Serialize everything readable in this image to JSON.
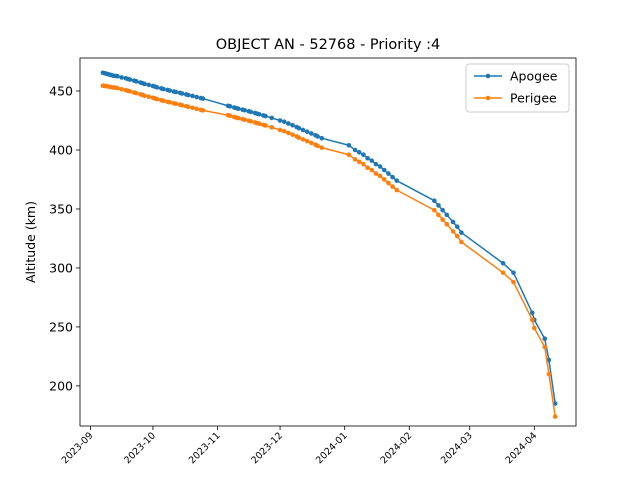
{
  "chart_data": {
    "type": "line",
    "title": "OBJECT AN - 52768 - Priority :4",
    "xlabel": "",
    "ylabel": "Altitude (km)",
    "x_ticks": [
      "2023-09",
      "2023-10",
      "2023-11",
      "2023-12",
      "2024-01",
      "2024-02",
      "2024-03",
      "2024-04"
    ],
    "y_ticks": [
      200,
      250,
      300,
      350,
      400,
      450
    ],
    "xlim": [
      "2023-08-27",
      "2024-04-21"
    ],
    "ylim": [
      166,
      478
    ],
    "grid": false,
    "legend": "top-right",
    "x": [
      "2023-09-07",
      "2023-09-08",
      "2023-09-09",
      "2023-09-10",
      "2023-09-11",
      "2023-09-12",
      "2023-09-13",
      "2023-09-14",
      "2023-09-16",
      "2023-09-18",
      "2023-09-19",
      "2023-09-20",
      "2023-09-22",
      "2023-09-23",
      "2023-09-25",
      "2023-09-26",
      "2023-09-27",
      "2023-09-29",
      "2023-10-01",
      "2023-10-02",
      "2023-10-03",
      "2023-10-05",
      "2023-10-06",
      "2023-10-08",
      "2023-10-09",
      "2023-10-11",
      "2023-10-12",
      "2023-10-14",
      "2023-10-15",
      "2023-10-17",
      "2023-10-18",
      "2023-10-20",
      "2023-10-22",
      "2023-10-24",
      "2023-10-25",
      "2023-11-06",
      "2023-11-07",
      "2023-11-09",
      "2023-11-10",
      "2023-11-11",
      "2023-11-13",
      "2023-11-14",
      "2023-11-16",
      "2023-11-17",
      "2023-11-19",
      "2023-11-20",
      "2023-11-21",
      "2023-11-23",
      "2023-11-24",
      "2023-11-27",
      "2023-12-01",
      "2023-12-03",
      "2023-12-05",
      "2023-12-07",
      "2023-12-09",
      "2023-12-10",
      "2023-12-12",
      "2023-12-14",
      "2023-12-16",
      "2023-12-18",
      "2023-12-19",
      "2023-12-21",
      "2024-01-03",
      "2024-01-06",
      "2024-01-08",
      "2024-01-10",
      "2024-01-12",
      "2024-01-14",
      "2024-01-16",
      "2024-01-18",
      "2024-01-20",
      "2024-01-22",
      "2024-01-24",
      "2024-01-26",
      "2024-02-13",
      "2024-02-15",
      "2024-02-17",
      "2024-02-19",
      "2024-02-22",
      "2024-02-24",
      "2024-02-26",
      "2024-03-17",
      "2024-03-22",
      "2024-03-31",
      "2024-04-01",
      "2024-04-06",
      "2024-04-08",
      "2024-04-11"
    ],
    "series": [
      {
        "name": "Apogee",
        "color": "#1f77b4",
        "values": [
          465.5,
          465,
          464.5,
          464,
          463.5,
          463,
          462.8,
          462.5,
          461.5,
          460.8,
          460.2,
          459.7,
          458.8,
          458.2,
          457.2,
          456.7,
          456,
          455.2,
          454.3,
          453.7,
          453.1,
          452.2,
          451.7,
          450.9,
          450.4,
          449.6,
          449.2,
          448.4,
          447.9,
          447.1,
          446.6,
          445.8,
          444.9,
          444,
          443.6,
          437.5,
          437,
          436,
          435.5,
          435,
          434.2,
          433.7,
          432.8,
          432.3,
          431.4,
          430.8,
          430.3,
          429.3,
          428.8,
          427.2,
          425,
          424,
          422.5,
          421,
          419.5,
          418.5,
          417,
          415.5,
          414,
          412.5,
          411.5,
          410,
          404,
          400,
          398,
          396,
          393,
          391,
          388,
          386,
          383,
          380,
          377,
          374,
          357,
          353,
          349,
          345,
          339,
          335,
          330,
          304,
          296,
          262,
          256,
          240,
          222,
          185
        ]
      },
      {
        "name": "Perigee",
        "color": "#ff7f0e",
        "values": [
          454.5,
          454.3,
          454,
          453.7,
          453.3,
          453,
          452.8,
          452.5,
          451.5,
          450.8,
          450.2,
          449.7,
          448.8,
          448.2,
          447.2,
          446.7,
          446,
          445.2,
          444.3,
          443.7,
          443.1,
          442.2,
          441.7,
          440.9,
          440.4,
          439.6,
          439.2,
          438.4,
          437.9,
          437.1,
          436.6,
          435.8,
          434.9,
          434,
          433.6,
          429.5,
          429,
          428,
          427.5,
          427,
          426.2,
          425.7,
          424.8,
          424.3,
          423.4,
          422.8,
          422.3,
          421.3,
          420.8,
          419.2,
          417,
          416,
          414.5,
          413,
          411.5,
          410.5,
          409,
          407.5,
          406,
          404.5,
          403.5,
          402,
          396,
          392,
          390,
          388,
          385,
          383,
          380,
          378,
          375,
          372,
          369,
          366,
          349,
          345,
          341,
          337,
          331,
          327,
          322,
          296,
          288,
          256,
          249,
          233,
          210,
          174
        ]
      }
    ]
  }
}
